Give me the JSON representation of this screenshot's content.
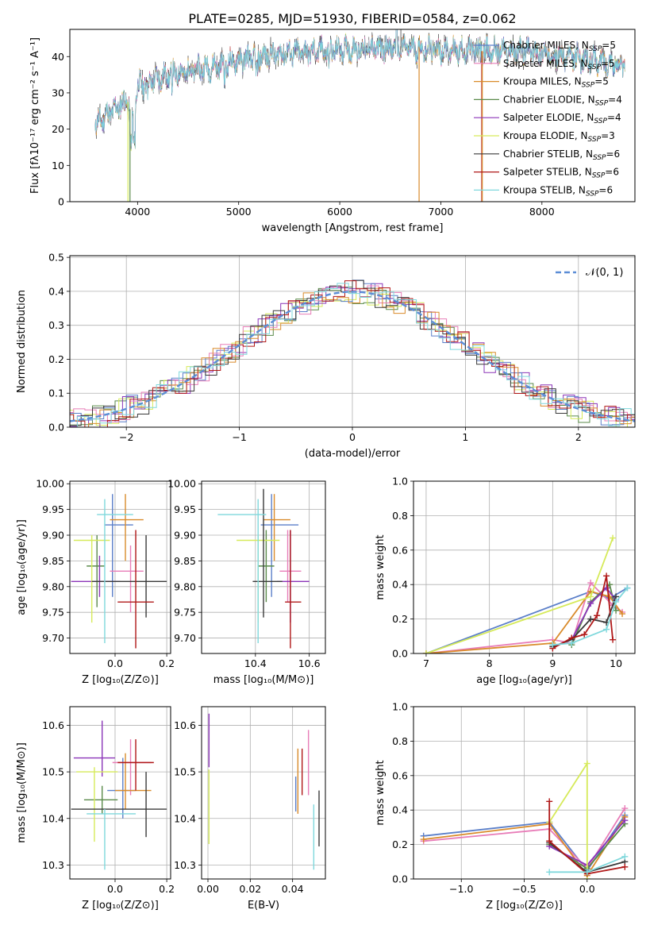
{
  "colors": {
    "Chabrier MILES": "#5b7fc9",
    "Salpeter MILES": "#e87db8",
    "Kroupa MILES": "#d98b2b",
    "Chabrier ELODIE": "#5a8a4a",
    "Salpeter ELODIE": "#8b35b8",
    "Kroupa ELODIE": "#d6ea5a",
    "Chabrier STELIB": "#3a3a3a",
    "Salpeter STELIB": "#b01818",
    "Kroupa STELIB": "#7fd8dc"
  },
  "chart_data": [
    {
      "type": "line",
      "id": "spectrum",
      "title": "PLATE=0285, MJD=51930, FIBERID=0584, z=0.062",
      "xlabel": "wavelength [Angstrom, rest frame]",
      "ylabel": "Flux [fλ10⁻¹⁷ erg cm⁻² s⁻¹ A⁻¹]",
      "xlim": [
        3330,
        8920
      ],
      "ylim": [
        0,
        47.5
      ],
      "xticks": [
        4000,
        5000,
        6000,
        7000,
        8000
      ],
      "yticks": [
        0,
        10,
        20,
        30,
        40
      ],
      "grid": false,
      "legend_position": "right",
      "continuum": {
        "x": [
          3580,
          3700,
          3900,
          3950,
          4000,
          4100,
          4300,
          4500,
          4800,
          5000,
          5200,
          5500,
          5800,
          6000,
          6300,
          6600,
          6900,
          7200,
          7500,
          7800,
          8100,
          8400,
          8800
        ],
        "y": [
          21,
          24,
          28,
          23,
          32,
          33,
          35,
          36,
          37.5,
          39,
          40,
          41,
          41.5,
          42,
          42.2,
          42.5,
          42,
          41.5,
          41.5,
          41.5,
          40.5,
          39.5,
          37.5
        ]
      },
      "series": [
        {
          "name": "Chabrier MILES, Nₛₛₚ=5",
          "label": "Chabrier MILES",
          "sub": "SSP",
          "n": "5"
        },
        {
          "name": "Salpeter MILES, Nₛₛₚ=5",
          "label": "Salpeter MILES",
          "sub": "SSP",
          "n": "5"
        },
        {
          "name": "Kroupa MILES, Nₛₛₚ=5",
          "label": "Kroupa MILES",
          "sub": "SSP",
          "n": "5"
        },
        {
          "name": "Chabrier ELODIE, Nₛₛₚ=4",
          "label": "Chabrier ELODIE",
          "sub": "SSP",
          "n": "4"
        },
        {
          "name": "Salpeter ELODIE, Nₛₛₚ=4",
          "label": "Salpeter ELODIE",
          "sub": "SSP",
          "n": "4"
        },
        {
          "name": "Kroupa ELODIE, Nₛₛₚ=3",
          "label": "Kroupa ELODIE",
          "sub": "SSP",
          "n": "3"
        },
        {
          "name": "Chabrier STELIB, Nₛₛₚ=6",
          "label": "Chabrier STELIB",
          "sub": "SSP",
          "n": "6"
        },
        {
          "name": "Salpeter STELIB, Nₛₛₚ=6",
          "label": "Salpeter STELIB",
          "sub": "SSP",
          "n": "6"
        },
        {
          "name": "Kroupa STELIB, Nₛₛₚ=6",
          "label": "Kroupa STELIB",
          "sub": "SSP",
          "n": "6"
        }
      ]
    },
    {
      "type": "line",
      "id": "residuals",
      "xlabel": "(data-model)/error",
      "ylabel": "Normed distribution",
      "xlim": [
        -2.5,
        2.5
      ],
      "ylim": [
        0,
        0.505
      ],
      "xticks": [
        -2,
        -1,
        0,
        1,
        2
      ],
      "yticks": [
        0.0,
        0.1,
        0.2,
        0.3,
        0.4,
        0.5
      ],
      "grid": true,
      "legend_position": "top-right",
      "legend": "𝒩(0, 1)",
      "bin_width": 0.1,
      "gaussian": {
        "mean": 0,
        "sigma": 1
      }
    },
    {
      "type": "scatter",
      "id": "z_age",
      "xlabel": "Z [log₁₀(Z/Z⊙)]",
      "ylabel": "age  [log₁₀(age/yr)]",
      "xlim": [
        -0.175,
        0.215
      ],
      "ylim": [
        9.67,
        10.005
      ],
      "xticks": [
        0.0,
        0.2
      ],
      "yticks": [
        9.7,
        9.75,
        9.8,
        9.85,
        9.9,
        9.95,
        10.0
      ],
      "grid": true,
      "points": [
        {
          "series": "Chabrier MILES",
          "x": -0.01,
          "xerr": [
            0.03,
            0.08
          ],
          "y": 9.92,
          "yerr": [
            0.14,
            0.06
          ]
        },
        {
          "series": "Salpeter MILES",
          "x": 0.06,
          "xerr": [
            0.08,
            0.05
          ],
          "y": 9.83,
          "yerr": [
            0.08,
            0.05
          ]
        },
        {
          "series": "Kroupa MILES",
          "x": 0.04,
          "xerr": [
            0.06,
            0.07
          ],
          "y": 9.93,
          "yerr": [
            0.08,
            0.05
          ]
        },
        {
          "series": "Chabrier ELODIE",
          "x": -0.07,
          "xerr": [
            0.04,
            0.03
          ],
          "y": 9.84,
          "yerr": [
            0.08,
            0.06
          ]
        },
        {
          "series": "Salpeter ELODIE",
          "x": -0.06,
          "xerr": [
            0.11,
            0.08
          ],
          "y": 9.81,
          "yerr": [
            0.03,
            0.05
          ]
        },
        {
          "series": "Kroupa ELODIE",
          "x": -0.09,
          "xerr": [
            0.07,
            0.07
          ],
          "y": 9.89,
          "yerr": [
            0.16,
            0.01
          ]
        },
        {
          "series": "Chabrier STELIB",
          "x": 0.12,
          "xerr": [
            0.21,
            0.08
          ],
          "y": 9.81,
          "yerr": [
            0.07,
            0.09
          ]
        },
        {
          "series": "Salpeter STELIB",
          "x": 0.08,
          "xerr": [
            0.07,
            0.07
          ],
          "y": 9.77,
          "yerr": [
            0.09,
            0.14
          ]
        },
        {
          "series": "Kroupa STELIB",
          "x": -0.04,
          "xerr": [
            0.03,
            0.11
          ],
          "y": 9.94,
          "yerr": [
            0.25,
            0.03
          ]
        }
      ]
    },
    {
      "type": "scatter",
      "id": "mass_age",
      "xlabel": "mass [log₁₀(M/M⊙)]",
      "ylabel": "",
      "xlim": [
        10.2,
        10.66
      ],
      "ylim": [
        9.67,
        10.005
      ],
      "xticks": [
        10.4,
        10.6
      ],
      "yticks": [
        9.7,
        9.75,
        9.8,
        9.85,
        9.9,
        9.95,
        10.0
      ],
      "grid": true,
      "points": [
        {
          "series": "Chabrier MILES",
          "x": 10.46,
          "xerr": [
            0.04,
            0.1
          ],
          "y": 9.92,
          "yerr": [
            0.14,
            0.06
          ]
        },
        {
          "series": "Salpeter MILES",
          "x": 10.52,
          "xerr": [
            0.03,
            0.05
          ],
          "y": 9.83,
          "yerr": [
            0.06,
            0.08
          ]
        },
        {
          "series": "Kroupa MILES",
          "x": 10.47,
          "xerr": [
            0.04,
            0.06
          ],
          "y": 9.93,
          "yerr": [
            0.08,
            0.05
          ]
        },
        {
          "series": "Chabrier ELODIE",
          "x": 10.44,
          "xerr": [
            0.03,
            0.03
          ],
          "y": 9.84,
          "yerr": [
            0.07,
            0.07
          ]
        },
        {
          "series": "Salpeter ELODIE",
          "x": 10.53,
          "xerr": [
            0.05,
            0.07
          ],
          "y": 9.81,
          "yerr": [
            0.08,
            0.1
          ]
        },
        {
          "series": "Kroupa ELODIE",
          "x": 10.41,
          "xerr": [
            0.08,
            0.08
          ],
          "y": 9.89,
          "yerr": [
            0.16,
            0.01
          ]
        },
        {
          "series": "Chabrier STELIB",
          "x": 10.43,
          "xerr": [
            0.04,
            0.07
          ],
          "y": 9.81,
          "yerr": [
            0.07,
            0.18
          ]
        },
        {
          "series": "Salpeter STELIB",
          "x": 10.53,
          "xerr": [
            0.02,
            0.04
          ],
          "y": 9.77,
          "yerr": [
            0.09,
            0.14
          ]
        },
        {
          "series": "Kroupa STELIB",
          "x": 10.41,
          "xerr": [
            0.15,
            0.03
          ],
          "y": 9.94,
          "yerr": [
            0.25,
            0.03
          ]
        }
      ]
    },
    {
      "type": "line",
      "id": "age_weight",
      "xlabel": "age  [log₁₀(age/yr)]",
      "ylabel": "mass weight",
      "xlim": [
        6.8,
        10.3
      ],
      "ylim": [
        0.0,
        1.0
      ],
      "xticks": [
        7,
        8,
        9,
        10
      ],
      "yticks": [
        0.0,
        0.2,
        0.4,
        0.6,
        0.8,
        1.0
      ],
      "grid": true,
      "series": [
        {
          "name": "Chabrier MILES",
          "x": [
            7.0,
            9.6,
            9.9,
            10.18
          ],
          "y": [
            0.0,
            0.36,
            0.32,
            0.38
          ]
        },
        {
          "name": "Salpeter MILES",
          "x": [
            7.0,
            9.0,
            9.3,
            9.6,
            9.95,
            10.1
          ],
          "y": [
            0.0,
            0.08,
            0.06,
            0.41,
            0.28,
            0.24
          ]
        },
        {
          "name": "Kroupa MILES",
          "x": [
            7.0,
            9.0,
            9.6,
            9.9,
            10.1
          ],
          "y": [
            0.0,
            0.06,
            0.36,
            0.33,
            0.23
          ]
        },
        {
          "name": "Chabrier ELODIE",
          "x": [
            9.3,
            9.6,
            9.9,
            10.0
          ],
          "y": [
            0.05,
            0.3,
            0.4,
            0.25
          ]
        },
        {
          "name": "Salpeter ELODIE",
          "x": [
            9.3,
            9.6,
            9.85,
            10.0
          ],
          "y": [
            0.08,
            0.29,
            0.38,
            0.31
          ]
        },
        {
          "name": "Kroupa ELODIE",
          "x": [
            7.0,
            9.6,
            9.95
          ],
          "y": [
            0.0,
            0.33,
            0.67
          ]
        },
        {
          "name": "Chabrier STELIB",
          "x": [
            9.0,
            9.3,
            9.6,
            9.85,
            10.0
          ],
          "y": [
            0.04,
            0.08,
            0.2,
            0.18,
            0.33
          ]
        },
        {
          "name": "Salpeter STELIB",
          "x": [
            9.0,
            9.3,
            9.5,
            9.7,
            9.85,
            9.95
          ],
          "y": [
            0.03,
            0.09,
            0.11,
            0.22,
            0.45,
            0.08
          ]
        },
        {
          "name": "Kroupa STELIB",
          "x": [
            9.0,
            9.3,
            9.85,
            10.0,
            10.18
          ],
          "y": [
            0.05,
            0.06,
            0.14,
            0.3,
            0.38
          ]
        }
      ]
    },
    {
      "type": "scatter",
      "id": "z_mass",
      "xlabel": "Z [log₁₀(Z/Z⊙)]",
      "ylabel": "mass [log₁₀(M/M⊙)]",
      "xlim": [
        -0.175,
        0.215
      ],
      "ylim": [
        10.27,
        10.64
      ],
      "xticks": [
        0.0,
        0.2
      ],
      "yticks": [
        10.3,
        10.4,
        10.5,
        10.6
      ],
      "grid": true,
      "points": [
        {
          "series": "Chabrier MILES",
          "x": 0.03,
          "xerr": [
            0.06,
            0.05
          ],
          "y": 10.46,
          "yerr": [
            0.06,
            0.07
          ]
        },
        {
          "series": "Salpeter MILES",
          "x": 0.06,
          "xerr": [
            0.07,
            0.08
          ],
          "y": 10.52,
          "yerr": [
            0.07,
            0.05
          ]
        },
        {
          "series": "Kroupa MILES",
          "x": 0.04,
          "xerr": [
            0.04,
            0.1
          ],
          "y": 10.46,
          "yerr": [
            0.04,
            0.08
          ]
        },
        {
          "series": "Chabrier ELODIE",
          "x": -0.05,
          "xerr": [
            0.07,
            0.06
          ],
          "y": 10.44,
          "yerr": [
            0.03,
            0.03
          ]
        },
        {
          "series": "Salpeter ELODIE",
          "x": -0.05,
          "xerr": [
            0.11,
            0.05
          ],
          "y": 10.53,
          "yerr": [
            0.04,
            0.08
          ]
        },
        {
          "series": "Kroupa ELODIE",
          "x": -0.08,
          "xerr": [
            0.07,
            0.09
          ],
          "y": 10.5,
          "yerr": [
            0.15,
            0.01
          ]
        },
        {
          "series": "Chabrier STELIB",
          "x": 0.12,
          "xerr": [
            0.29,
            0.08
          ],
          "y": 10.42,
          "yerr": [
            0.06,
            0.08
          ]
        },
        {
          "series": "Salpeter STELIB",
          "x": 0.08,
          "xerr": [
            0.07,
            0.07
          ],
          "y": 10.52,
          "yerr": [
            0.06,
            0.05
          ]
        },
        {
          "series": "Kroupa STELIB",
          "x": -0.04,
          "xerr": [
            0.07,
            0.12
          ],
          "y": 10.41,
          "yerr": [
            0.12,
            0.01
          ]
        }
      ]
    },
    {
      "type": "scatter",
      "id": "ebv_mass",
      "xlabel": "E(B-V)",
      "ylabel": "",
      "xlim": [
        -0.003,
        0.0555
      ],
      "ylim": [
        10.27,
        10.64
      ],
      "xticks": [
        0.0,
        0.02,
        0.04
      ],
      "yticks": [
        10.3,
        10.4,
        10.5,
        10.6
      ],
      "grid": true,
      "points": [
        {
          "series": "Salpeter ELODIE",
          "x": 0.0005,
          "y": 10.56,
          "yerr": [
            0.05,
            0.065
          ]
        },
        {
          "series": "Kroupa ELODIE",
          "x": 0.0005,
          "y": 10.43,
          "yerr": [
            0.085,
            0.075
          ]
        },
        {
          "series": "Chabrier MILES",
          "x": 0.0415,
          "y": 10.45,
          "yerr": [
            0.035,
            0.04
          ]
        },
        {
          "series": "Kroupa MILES",
          "x": 0.0425,
          "y": 10.45,
          "yerr": [
            0.04,
            0.1
          ]
        },
        {
          "series": "Salpeter STELIB",
          "x": 0.0445,
          "y": 10.49,
          "yerr": [
            0.04,
            0.06
          ]
        },
        {
          "series": "Salpeter MILES",
          "x": 0.0475,
          "y": 10.5,
          "yerr": [
            0.05,
            0.09
          ]
        },
        {
          "series": "Kroupa STELIB",
          "x": 0.05,
          "y": 10.36,
          "yerr": [
            0.07,
            0.07
          ]
        },
        {
          "series": "Chabrier STELIB",
          "x": 0.0525,
          "y": 10.4,
          "yerr": [
            0.06,
            0.06
          ]
        }
      ]
    },
    {
      "type": "line",
      "id": "z_weight",
      "xlabel": "Z [log₁₀(Z/Z⊙)]",
      "ylabel": "mass weight",
      "xlim": [
        -1.38,
        0.38
      ],
      "ylim": [
        0.0,
        1.0
      ],
      "xticks": [
        -1.0,
        -0.5,
        0.0
      ],
      "yticks": [
        0.0,
        0.2,
        0.4,
        0.6,
        0.8,
        1.0
      ],
      "grid": true,
      "series": [
        {
          "name": "Chabrier MILES",
          "x": [
            -1.3,
            -0.3,
            0.0,
            0.3
          ],
          "y": [
            0.25,
            0.33,
            0.05,
            0.37
          ]
        },
        {
          "name": "Salpeter MILES",
          "x": [
            -1.3,
            -0.3,
            0.0,
            0.3
          ],
          "y": [
            0.22,
            0.29,
            0.06,
            0.41
          ]
        },
        {
          "name": "Kroupa MILES",
          "x": [
            -1.3,
            -0.3,
            0.0,
            0.3
          ],
          "y": [
            0.23,
            0.32,
            0.02,
            0.36
          ]
        },
        {
          "name": "Chabrier ELODIE",
          "x": [
            -0.3,
            0.0,
            0.3
          ],
          "y": [
            0.2,
            0.06,
            0.32
          ]
        },
        {
          "name": "Salpeter ELODIE",
          "x": [
            -0.3,
            0.0,
            0.3
          ],
          "y": [
            0.19,
            0.08,
            0.34
          ]
        },
        {
          "name": "Kroupa ELODIE",
          "x": [
            -0.3,
            0.0,
            0.0
          ],
          "y": [
            0.33,
            0.67,
            0.0
          ]
        },
        {
          "name": "Chabrier STELIB",
          "x": [
            -0.3,
            0.0,
            0.3
          ],
          "y": [
            0.21,
            0.04,
            0.1
          ]
        },
        {
          "name": "Salpeter STELIB",
          "x": [
            -0.3,
            -0.3,
            0.0,
            0.3
          ],
          "y": [
            0.45,
            0.22,
            0.03,
            0.07
          ]
        },
        {
          "name": "Kroupa STELIB",
          "x": [
            -0.3,
            0.0,
            0.3
          ],
          "y": [
            0.04,
            0.04,
            0.13
          ]
        }
      ]
    }
  ]
}
